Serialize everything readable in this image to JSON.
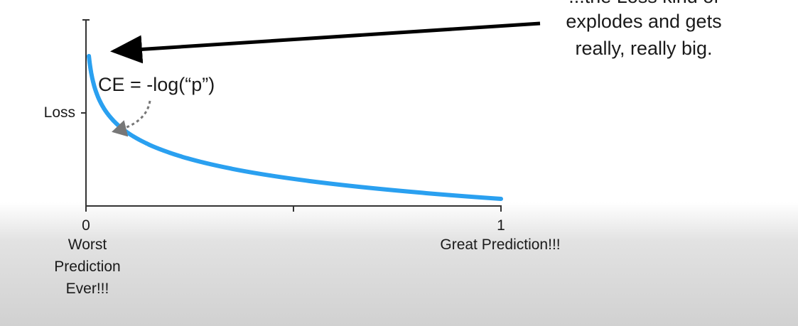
{
  "chart_data": {
    "type": "line",
    "formula_label": "CE = -log(“p”)",
    "ylabel": "Loss",
    "x_tick_labels": [
      "0",
      "1"
    ],
    "x_tick_values": [
      0,
      0.5,
      1
    ],
    "x_end_labels": {
      "left": [
        "Worst",
        "Prediction",
        "Ever!!!"
      ],
      "right": "Great Prediction!!!"
    },
    "xlim": [
      0,
      1
    ],
    "ylim": [
      0,
      5.5
    ],
    "series": [
      {
        "color": "#2aa0f0",
        "function": "-ln(p)",
        "x": [
          0.007,
          0.01,
          0.02,
          0.03,
          0.05,
          0.08,
          0.1,
          0.15,
          0.2,
          0.3,
          0.4,
          0.5,
          0.6,
          0.7,
          0.8,
          0.9,
          1.0
        ],
        "y": [
          4.96,
          4.61,
          3.91,
          3.51,
          3.0,
          2.53,
          2.3,
          1.9,
          1.61,
          1.2,
          0.92,
          0.69,
          0.51,
          0.36,
          0.22,
          0.11,
          0.0
        ]
      }
    ],
    "annotation": {
      "lines": [
        "...the Loss kind of",
        "explodes and gets",
        "really, really big."
      ]
    },
    "grid": false
  }
}
